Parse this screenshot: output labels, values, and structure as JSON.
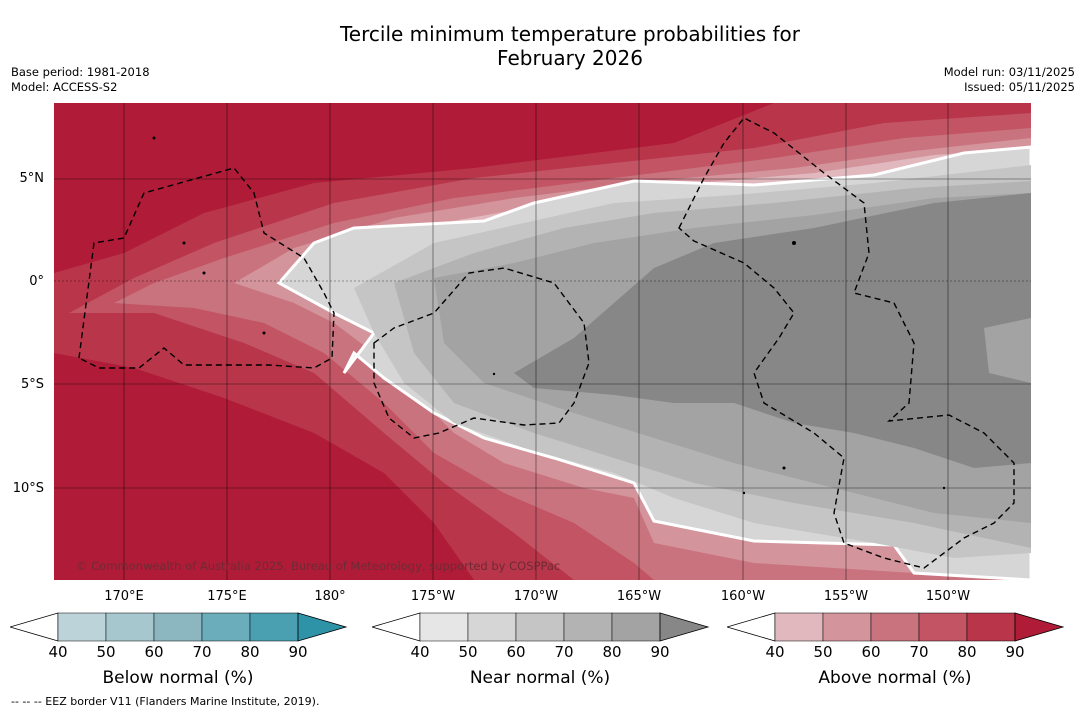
{
  "title_line1": "Tercile minimum temperature probabilities for",
  "title_line2": "February 2026",
  "meta_left": {
    "base_period": "Base period: 1981-2018",
    "model": "Model: ACCESS-S2"
  },
  "meta_right": {
    "model_run": "Model run: 03/11/2025",
    "issued": "Issued: 05/11/2025"
  },
  "map": {
    "copyright": "© Commonwealth of Australia 2025, Bureau of Meteorology, supported by COSPPac",
    "lat_labels": [
      "5°N",
      "0°",
      "5°S",
      "10°S"
    ],
    "lon_labels": [
      "170°E",
      "175°E",
      "180°",
      "175°W",
      "170°W",
      "165°W",
      "160°W",
      "155°W",
      "150°W"
    ]
  },
  "colorbars": [
    {
      "title": "Below normal (%)",
      "ticks": [
        "40",
        "50",
        "60",
        "70",
        "80",
        "90"
      ],
      "colors": [
        "#ffffff",
        "#bdd3da",
        "#a6c7cd",
        "#8cb7c1",
        "#6badba",
        "#4aa0b1",
        "#2f93a8"
      ]
    },
    {
      "title": "Near normal (%)",
      "ticks": [
        "40",
        "50",
        "60",
        "70",
        "80",
        "90"
      ],
      "colors": [
        "#ffffff",
        "#e6e6e6",
        "#d6d6d6",
        "#c5c5c5",
        "#b3b3b3",
        "#a3a3a3",
        "#878787"
      ]
    },
    {
      "title": "Above normal (%)",
      "ticks": [
        "40",
        "50",
        "60",
        "70",
        "80",
        "90"
      ],
      "colors": [
        "#ffffff",
        "#e0b8be",
        "#d4949c",
        "#c9737e",
        "#c25464",
        "#b8354a",
        "#b01c38"
      ]
    }
  ],
  "footnote": "--  --  -- EEZ border V11 (Flanders Marine Institute, 2019)."
}
